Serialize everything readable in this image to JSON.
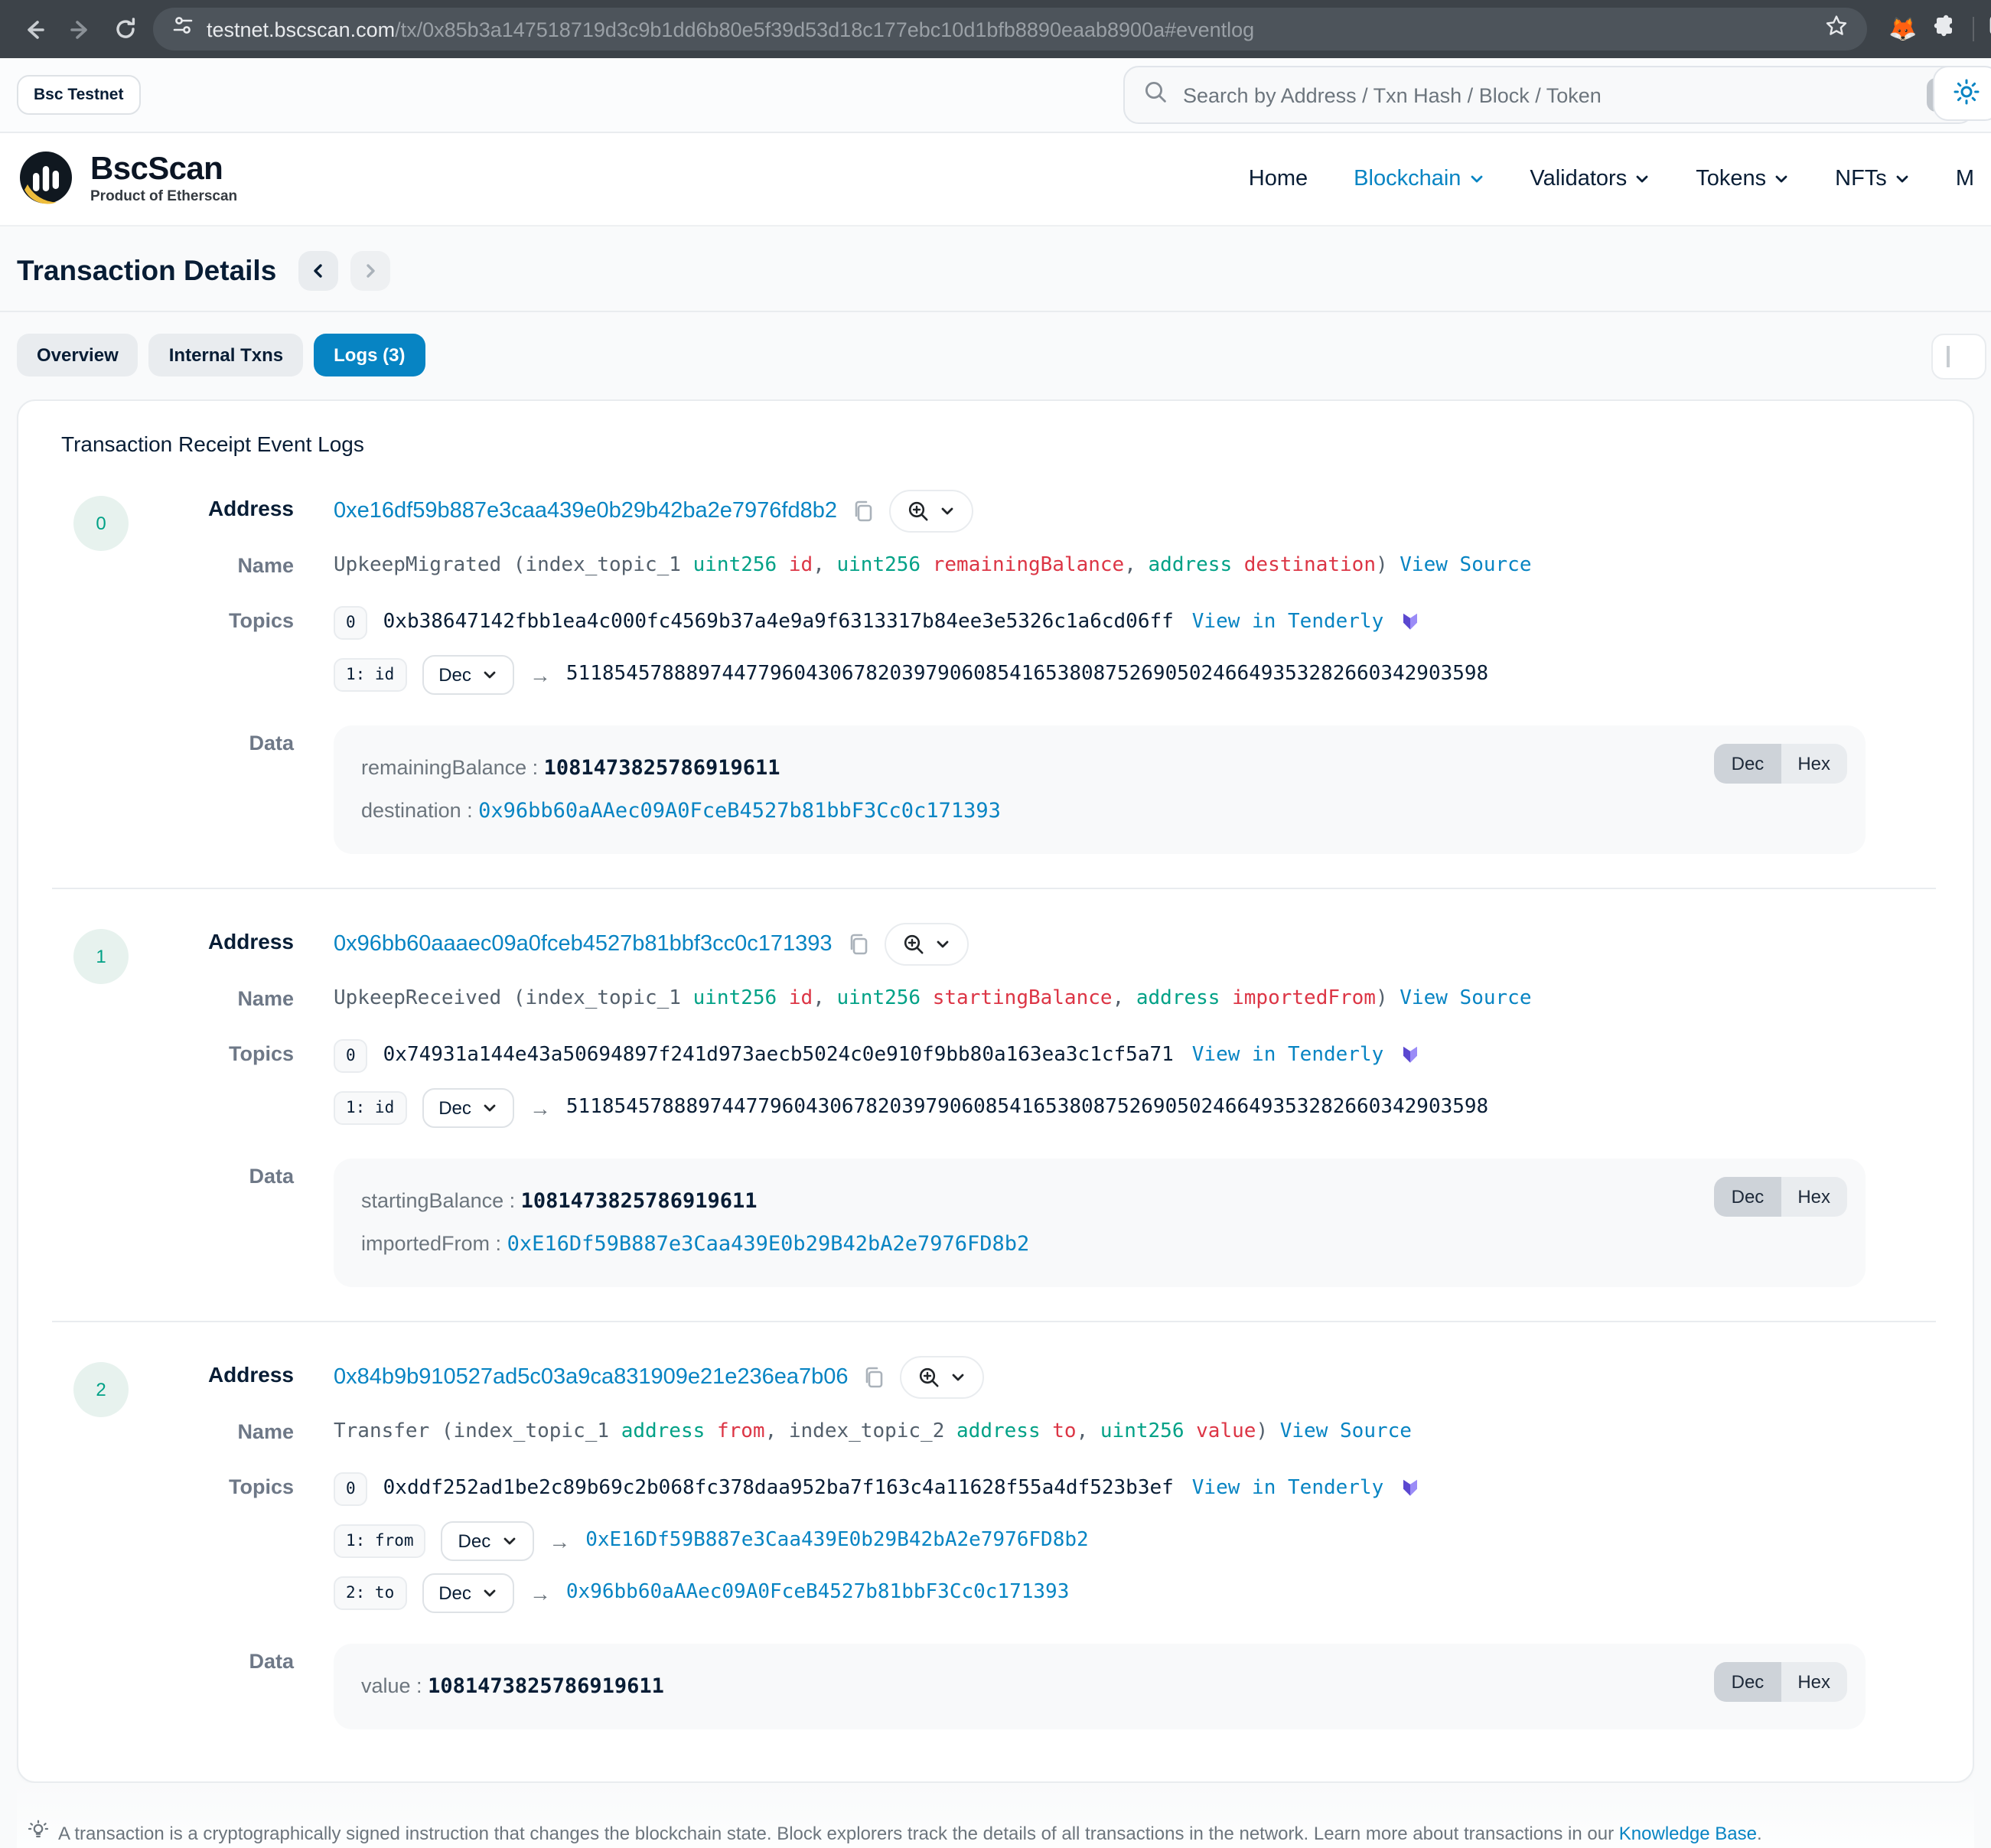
{
  "browser": {
    "url_domain": "testnet.bscscan.com",
    "url_rest": "/tx/0x85b3a147518719d3c9b1dd6b80e5f39d53d18c177ebc10d1bfb8890eaab8900a#eventlog"
  },
  "header": {
    "network_badge": "Bsc Testnet",
    "search_placeholder": "Search by Address / Txn Hash / Block / Token",
    "search_shortcut": "/",
    "brand": {
      "name": "BscScan",
      "tagline": "Product of Etherscan"
    },
    "nav": [
      {
        "label": "Home",
        "caret": false,
        "active": false
      },
      {
        "label": "Blockchain",
        "caret": true,
        "active": true
      },
      {
        "label": "Validators",
        "caret": true,
        "active": false
      },
      {
        "label": "Tokens",
        "caret": true,
        "active": false
      },
      {
        "label": "NFTs",
        "caret": true,
        "active": false
      },
      {
        "label": "M",
        "caret": false,
        "active": false
      }
    ]
  },
  "page": {
    "title": "Transaction Details",
    "tabs": [
      {
        "label": "Overview",
        "active": false
      },
      {
        "label": "Internal Txns",
        "active": false
      },
      {
        "label": "Logs (3)",
        "active": true
      }
    ],
    "card_title": "Transaction Receipt Event Logs",
    "log_labels": {
      "address": "Address",
      "name": "Name",
      "topics": "Topics",
      "data": "Data"
    }
  },
  "logs": [
    {
      "index": "0",
      "address": "0xe16df59b887e3caa439e0b29b42ba2e7976fd8b2",
      "signature": [
        {
          "text": "UpkeepMigrated (index_topic_1 ",
          "kind": "plain"
        },
        {
          "text": "uint256",
          "kind": "type"
        },
        {
          "text": " ",
          "kind": "plain"
        },
        {
          "text": "id",
          "kind": "param"
        },
        {
          "text": ", ",
          "kind": "plain"
        },
        {
          "text": "uint256",
          "kind": "type"
        },
        {
          "text": " ",
          "kind": "plain"
        },
        {
          "text": "remainingBalance",
          "kind": "param"
        },
        {
          "text": ", ",
          "kind": "plain"
        },
        {
          "text": "address",
          "kind": "type"
        },
        {
          "text": " ",
          "kind": "plain"
        },
        {
          "text": "destination",
          "kind": "param"
        },
        {
          "text": ") ",
          "kind": "plain"
        }
      ],
      "view_source": "View Source",
      "topics": [
        {
          "badge": "0",
          "kind": "hash",
          "value": "0xb38647142fbb1ea4c000fc4569b37a4e9a9f6313317b84ee3e5326c1a6cd06ff",
          "tenderly": "View in Tenderly"
        },
        {
          "badge": "1: id",
          "selector": "Dec",
          "kind": "plain",
          "value": "51185457888974477960430678203979060854165380875269050246649353282660342903598"
        }
      ],
      "data_rows": [
        {
          "key": "remainingBalance",
          "kind": "number",
          "value": "1081473825786919611"
        },
        {
          "key": "destination",
          "kind": "address",
          "value": "0x96bb60aAAec09A0FceB4527b81bbF3Cc0c171393"
        }
      ],
      "dec": "Dec",
      "hex": "Hex"
    },
    {
      "index": "1",
      "address": "0x96bb60aaaec09a0fceb4527b81bbf3cc0c171393",
      "signature": [
        {
          "text": "UpkeepReceived (index_topic_1 ",
          "kind": "plain"
        },
        {
          "text": "uint256",
          "kind": "type"
        },
        {
          "text": " ",
          "kind": "plain"
        },
        {
          "text": "id",
          "kind": "param"
        },
        {
          "text": ", ",
          "kind": "plain"
        },
        {
          "text": "uint256",
          "kind": "type"
        },
        {
          "text": " ",
          "kind": "plain"
        },
        {
          "text": "startingBalance",
          "kind": "param"
        },
        {
          "text": ", ",
          "kind": "plain"
        },
        {
          "text": "address",
          "kind": "type"
        },
        {
          "text": " ",
          "kind": "plain"
        },
        {
          "text": "importedFrom",
          "kind": "param"
        },
        {
          "text": ") ",
          "kind": "plain"
        }
      ],
      "view_source": "View Source",
      "topics": [
        {
          "badge": "0",
          "kind": "hash",
          "value": "0x74931a144e43a50694897f241d973aecb5024c0e910f9bb80a163ea3c1cf5a71",
          "tenderly": "View in Tenderly"
        },
        {
          "badge": "1: id",
          "selector": "Dec",
          "kind": "plain",
          "value": "51185457888974477960430678203979060854165380875269050246649353282660342903598"
        }
      ],
      "data_rows": [
        {
          "key": "startingBalance",
          "kind": "number",
          "value": "1081473825786919611"
        },
        {
          "key": "importedFrom",
          "kind": "address",
          "value": "0xE16Df59B887e3Caa439E0b29B42bA2e7976FD8b2"
        }
      ],
      "dec": "Dec",
      "hex": "Hex"
    },
    {
      "index": "2",
      "address": "0x84b9b910527ad5c03a9ca831909e21e236ea7b06",
      "signature": [
        {
          "text": "Transfer (index_topic_1 ",
          "kind": "plain"
        },
        {
          "text": "address",
          "kind": "type"
        },
        {
          "text": " ",
          "kind": "plain"
        },
        {
          "text": "from",
          "kind": "param"
        },
        {
          "text": ", index_topic_2 ",
          "kind": "plain"
        },
        {
          "text": "address",
          "kind": "type"
        },
        {
          "text": " ",
          "kind": "plain"
        },
        {
          "text": "to",
          "kind": "param"
        },
        {
          "text": ", ",
          "kind": "plain"
        },
        {
          "text": "uint256",
          "kind": "type"
        },
        {
          "text": " ",
          "kind": "plain"
        },
        {
          "text": "value",
          "kind": "param"
        },
        {
          "text": ") ",
          "kind": "plain"
        }
      ],
      "view_source": "View Source",
      "topics": [
        {
          "badge": "0",
          "kind": "hash",
          "value": "0xddf252ad1be2c89b69c2b068fc378daa952ba7f163c4a11628f55a4df523b3ef",
          "tenderly": "View in Tenderly"
        },
        {
          "badge": "1: from",
          "selector": "Dec",
          "kind": "link",
          "value": "0xE16Df59B887e3Caa439E0b29B42bA2e7976FD8b2"
        },
        {
          "badge": "2: to",
          "selector": "Dec",
          "kind": "link",
          "value": "0x96bb60aAAec09A0FceB4527b81bbF3Cc0c171393"
        }
      ],
      "data_rows": [
        {
          "key": "value",
          "kind": "number",
          "value": "1081473825786919611"
        }
      ],
      "dec": "Dec",
      "hex": "Hex"
    }
  ],
  "footer": {
    "text_before_link": "A transaction is a cryptographically signed instruction that changes the blockchain state. Block explorers track the details of all transactions in the network. Learn more about transactions in our ",
    "link_label": "Knowledge Base",
    "text_after_link": "."
  },
  "colors": {
    "accent_blue": "#0784c3",
    "type_green": "#00a186",
    "param_red": "#dc3545",
    "badge_bg_green": "#e7f2ee",
    "tenderly_purple": "#6c5ce7",
    "browser_bar": "#3d4349"
  }
}
